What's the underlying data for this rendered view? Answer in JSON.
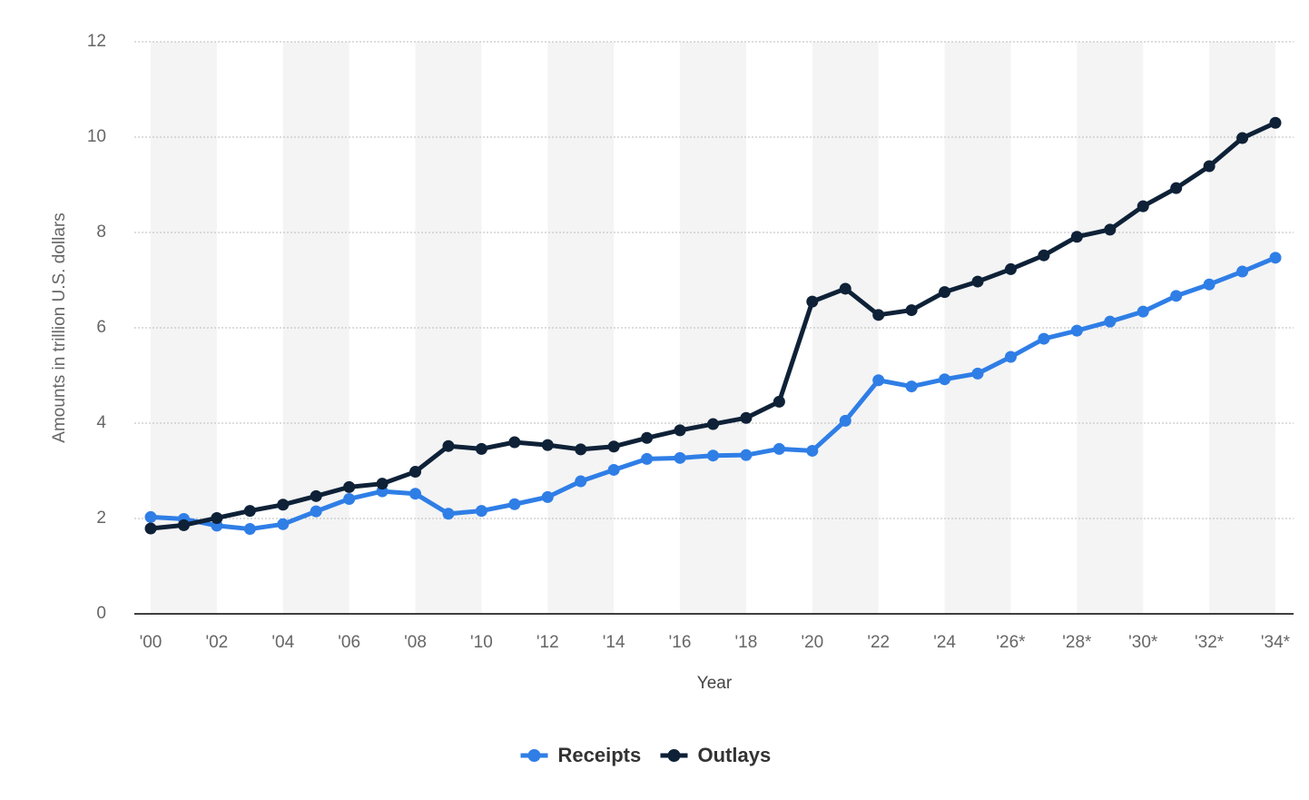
{
  "chart_data": {
    "type": "line",
    "x_label": "Year",
    "y_label": "Amounts in trillion U.S. dollars",
    "categories": [
      "'00",
      null,
      "'02",
      null,
      "'04",
      null,
      "'06",
      null,
      "'08",
      null,
      "'10",
      null,
      "'12",
      null,
      "'14",
      null,
      "'16",
      null,
      "'18",
      null,
      "'20",
      null,
      "'22",
      null,
      "'24",
      null,
      "'26*",
      null,
      "'28*",
      null,
      "'30*",
      null,
      "'32*",
      null,
      "'34*"
    ],
    "series": [
      {
        "name": "Receipts",
        "color": "#2f7ee6",
        "values": [
          2.03,
          1.99,
          1.85,
          1.78,
          1.88,
          2.15,
          2.41,
          2.57,
          2.52,
          2.1,
          2.16,
          2.3,
          2.45,
          2.78,
          3.02,
          3.25,
          3.27,
          3.32,
          3.33,
          3.46,
          3.42,
          4.05,
          4.9,
          4.77,
          4.92,
          5.04,
          5.39,
          5.77,
          5.94,
          6.13,
          6.34,
          6.67,
          6.91,
          7.18,
          7.47
        ]
      },
      {
        "name": "Outlays",
        "color": "#0e2137",
        "values": [
          1.79,
          1.86,
          2.01,
          2.16,
          2.29,
          2.47,
          2.66,
          2.73,
          2.98,
          3.52,
          3.46,
          3.6,
          3.54,
          3.45,
          3.51,
          3.69,
          3.85,
          3.98,
          4.11,
          4.45,
          6.55,
          6.82,
          6.27,
          6.37,
          6.75,
          6.97,
          7.23,
          7.52,
          7.91,
          8.06,
          8.55,
          8.93,
          9.39,
          9.98,
          10.3
        ]
      }
    ],
    "ylim": [
      0,
      12
    ],
    "yticks": [
      0,
      2,
      4,
      6,
      8,
      10,
      12
    ],
    "grid": true,
    "legend": "bottom"
  }
}
